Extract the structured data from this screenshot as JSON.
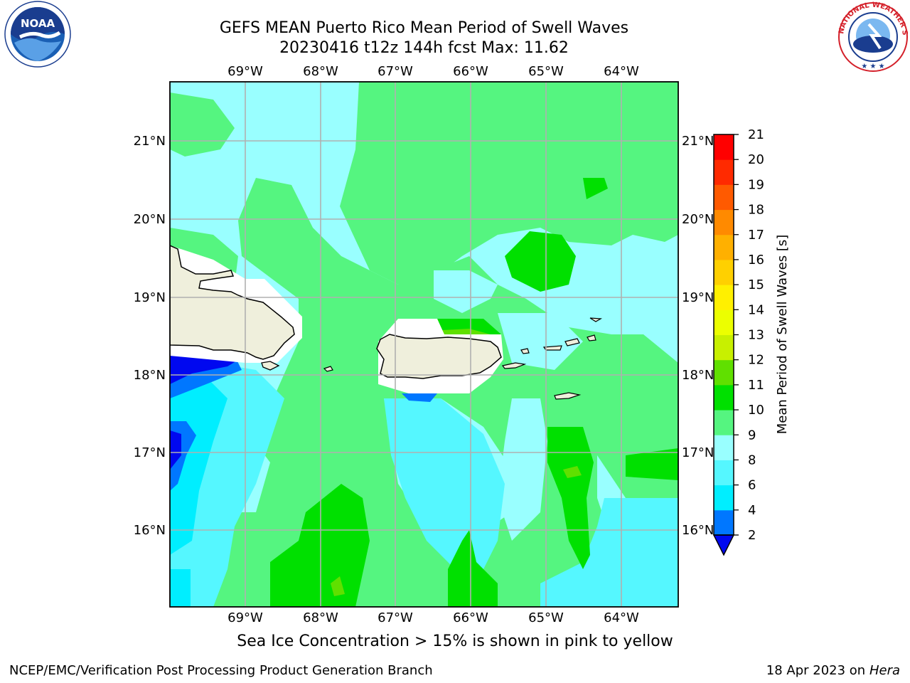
{
  "title_line1": "GEFS MEAN Puerto Rico Mean Period of Swell Waves",
  "title_line2": "20230416 t12z 144h fcst   Max: 11.62",
  "lon_labels": [
    "69°W",
    "68°W",
    "67°W",
    "66°W",
    "65°W",
    "64°W"
  ],
  "lat_labels": [
    "21°N",
    "20°N",
    "19°N",
    "18°N",
    "17°N",
    "16°N"
  ],
  "colorbar": {
    "label": "Mean Period of Swell Waves [s]",
    "ticks": [
      "2",
      "4",
      "6",
      "8",
      "9",
      "10",
      "11",
      "12",
      "13",
      "14",
      "15",
      "16",
      "17",
      "18",
      "19",
      "20",
      "21"
    ],
    "colors": [
      "#0008f0",
      "#0077ff",
      "#00eeff",
      "#55f7ff",
      "#99ffff",
      "#55f580",
      "#00e000",
      "#60e000",
      "#c8f000",
      "#ecff00",
      "#fff000",
      "#ffd000",
      "#ffb000",
      "#ff8a00",
      "#ff5a00",
      "#ff2a00",
      "#ff0000"
    ]
  },
  "caption": "Sea Ice Concentration > 15% is shown in pink to yellow",
  "footer_left": "NCEP/EMC/Verification Post Processing Product Generation Branch",
  "footer_date": "18 Apr 2023 on",
  "footer_host": "Hera",
  "logos": {
    "left_icon": "noaa-logo",
    "right_icon": "nws-logo"
  }
}
